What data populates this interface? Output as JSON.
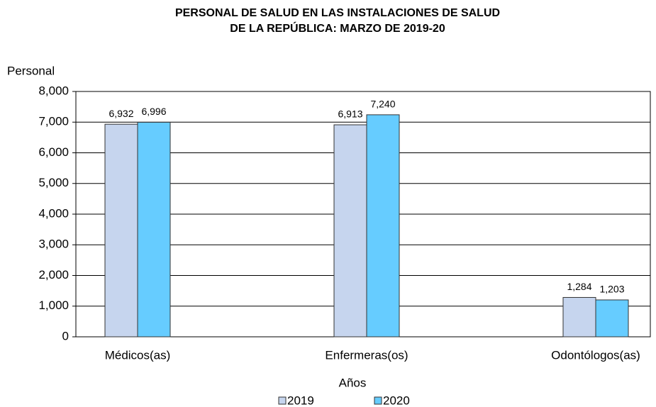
{
  "chart_data": {
    "type": "bar",
    "title": [
      "PERSONAL DE SALUD EN LAS INSTALACIONES DE SALUD",
      "DE LA REPÚBLICA: MARZO DE 2019-20"
    ],
    "y_label": "Personal",
    "x_label": "Años",
    "categories": [
      "Médicos(as)",
      "Enfermeras(os)",
      "Odontólogos(as)"
    ],
    "series": [
      {
        "name": "2019",
        "color": "#c6d5ee",
        "values": [
          6932,
          6913,
          1284
        ],
        "value_labels": [
          "6,932",
          "6,913",
          "1,284"
        ]
      },
      {
        "name": "2020",
        "color": "#66ccff",
        "values": [
          6996,
          7240,
          1203
        ],
        "value_labels": [
          "6,996",
          "7,240",
          "1,203"
        ]
      }
    ],
    "ylim": [
      0,
      8000
    ],
    "yticks": [
      0,
      {
        "value": 1000,
        "label": "1,000"
      },
      {
        "value": 2000,
        "label": "2,000"
      },
      {
        "value": 3000,
        "label": "3,000"
      },
      {
        "value": 4000,
        "label": "4,000"
      },
      {
        "value": 5000,
        "label": "5,000"
      },
      {
        "value": 6000,
        "label": "6,000"
      },
      {
        "value": 7000,
        "label": "7,000"
      },
      {
        "value": 8000,
        "label": "8,000"
      }
    ],
    "grid": true,
    "legend": "bottom"
  }
}
